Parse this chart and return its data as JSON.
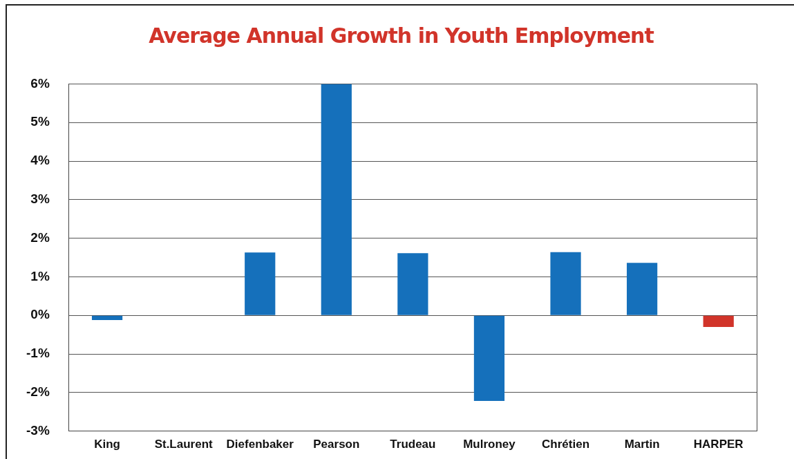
{
  "chart_data": {
    "type": "bar",
    "title": "Average Annual Growth in Youth Employment",
    "categories": [
      "King",
      "St.Laurent",
      "Diefenbaker",
      "Pearson",
      "Trudeau",
      "Mulroney",
      "Chrétien",
      "Martin",
      "HARPER"
    ],
    "values": [
      -0.12,
      0,
      1.63,
      6.0,
      1.61,
      -2.22,
      1.64,
      1.36,
      -0.3
    ],
    "colors": [
      "#1570bb",
      "#1570bb",
      "#1570bb",
      "#1570bb",
      "#1570bb",
      "#1570bb",
      "#1570bb",
      "#1570bb",
      "#d1342a"
    ],
    "ylim": [
      -3,
      6
    ],
    "yticks": [
      {
        "value": -3,
        "label": "-3%"
      },
      {
        "value": -2,
        "label": "-2%"
      },
      {
        "value": -1,
        "label": "-1%"
      },
      {
        "value": 0,
        "label": "0%"
      },
      {
        "value": 1,
        "label": "1%"
      },
      {
        "value": 2,
        "label": "2%"
      },
      {
        "value": 3,
        "label": "3%"
      },
      {
        "value": 4,
        "label": "4%"
      },
      {
        "value": 5,
        "label": "5%"
      },
      {
        "value": 6,
        "label": "6%"
      }
    ],
    "grid": "y",
    "legend": false
  }
}
